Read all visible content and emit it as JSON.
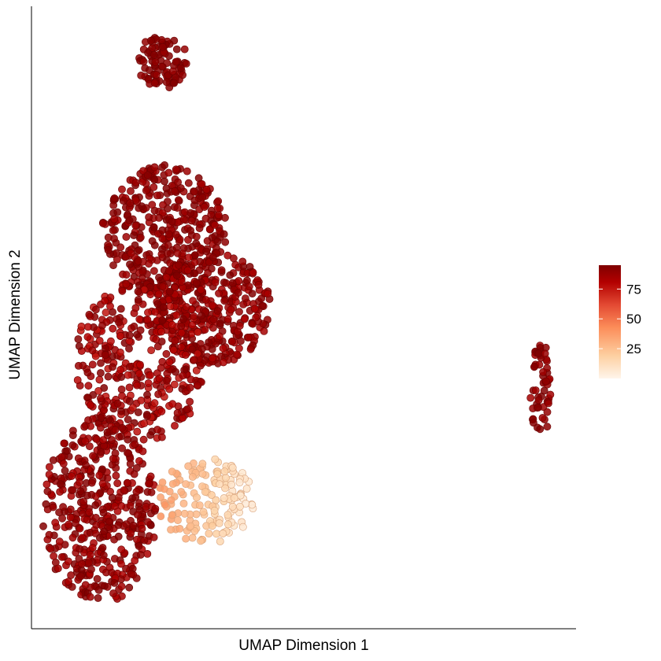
{
  "chart_data": {
    "type": "scatter",
    "title": "",
    "xlabel": "UMAP Dimension 1",
    "ylabel": "UMAP Dimension 2",
    "xlim": [
      0,
      100
    ],
    "ylim": [
      0,
      100
    ],
    "x_ticks_shown": false,
    "y_ticks_shown": false,
    "grid": false,
    "colorbar": {
      "placement": "right",
      "range": [
        0,
        95
      ],
      "ticks": [
        25,
        50,
        75
      ],
      "tick_labels": [
        "25",
        "50",
        "75"
      ],
      "colors": [
        "#fff5eb",
        "#fdd0a2",
        "#fc8d59",
        "#e34a33",
        "#b30000",
        "#7f0000"
      ]
    },
    "clusters": [
      {
        "id": "top-small",
        "center": [
          24.0,
          91.0
        ],
        "radius": [
          5.0,
          4.2
        ],
        "value_range": [
          88,
          95
        ],
        "n_points": 90
      },
      {
        "id": "upper-blob",
        "center": [
          24.5,
          64.0
        ],
        "radius": [
          11.5,
          10.5
        ],
        "value_range": [
          85,
          95
        ],
        "n_points": 380
      },
      {
        "id": "middle-right-lobe",
        "center": [
          33.0,
          51.5
        ],
        "radius": [
          11.0,
          9.0
        ],
        "value_range": [
          82,
          95
        ],
        "n_points": 320
      },
      {
        "id": "middle-left-lobe",
        "center": [
          20.0,
          43.0
        ],
        "radius": [
          12.0,
          13.0
        ],
        "value_range": [
          75,
          95
        ],
        "n_points": 360
      },
      {
        "id": "bottom-left-blob",
        "center": [
          12.5,
          19.0
        ],
        "radius": [
          10.5,
          15.0
        ],
        "value_range": [
          82,
          95
        ],
        "n_points": 420
      },
      {
        "id": "low-value-tail",
        "center": [
          32.0,
          20.5
        ],
        "radius": [
          9.0,
          7.0
        ],
        "value_range": [
          3,
          40
        ],
        "n_points": 150
      },
      {
        "id": "right-small",
        "center": [
          93.5,
          38.5
        ],
        "radius": [
          2.0,
          8.0
        ],
        "value_range": [
          85,
          95
        ],
        "n_points": 55
      }
    ]
  }
}
